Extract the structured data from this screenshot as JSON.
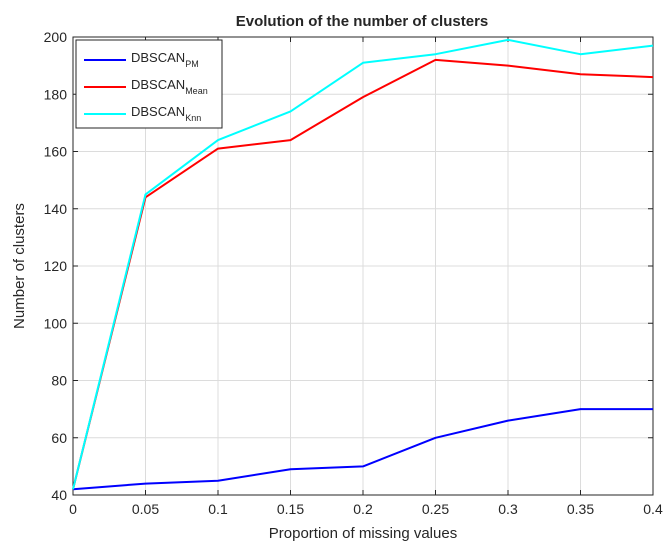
{
  "chart_data": {
    "type": "line",
    "title": "Evolution of the number of clusters",
    "xlabel": "Proportion of missing values",
    "ylabel": "Number of clusters",
    "xlim": [
      0,
      0.4
    ],
    "ylim": [
      40,
      200
    ],
    "grid": true,
    "legend_position": "top-left",
    "x": [
      0,
      0.05,
      0.1,
      0.15,
      0.2,
      0.25,
      0.3,
      0.35,
      0.4
    ],
    "x_tick_labels": [
      "0",
      "0.05",
      "0.1",
      "0.15",
      "0.2",
      "0.25",
      "0.3",
      "0.35",
      "0.4"
    ],
    "y_ticks": [
      40,
      60,
      80,
      100,
      120,
      140,
      160,
      180,
      200
    ],
    "series": [
      {
        "name": "DBSCAN_PM",
        "label_main": "DBSCAN",
        "label_sub": "PM",
        "color": "#0000ff",
        "values": [
          42,
          44,
          45,
          49,
          50,
          60,
          66,
          70,
          70
        ]
      },
      {
        "name": "DBSCAN_Mean",
        "label_main": "DBSCAN",
        "label_sub": "Mean",
        "color": "#ff0000",
        "values": [
          42,
          144,
          161,
          164,
          179,
          192,
          190,
          187,
          186
        ]
      },
      {
        "name": "DBSCAN_Knn",
        "label_main": "DBSCAN",
        "label_sub": "Knn",
        "color": "#00ffff",
        "values": [
          42,
          145,
          164,
          174,
          191,
          194,
          199,
          194,
          197
        ]
      }
    ]
  }
}
